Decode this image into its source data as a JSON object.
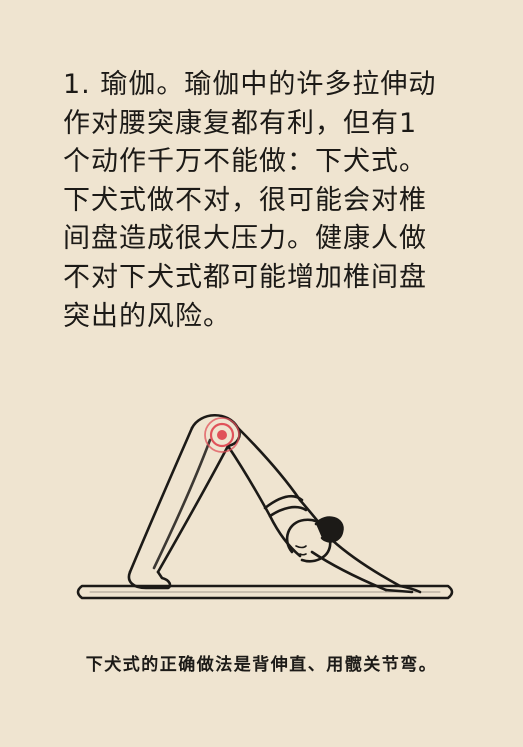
{
  "article": {
    "lines": [
      "1. 瑜伽。瑜伽中的许多拉伸动",
      "作对腰突康复都有利，但有1",
      "个动作千万不能做：下犬式。",
      "下犬式做不对，很可能会对椎",
      "间盘造成很大压力。健康人做",
      "不对下犬式都可能增加椎间盘",
      "突出的风险。"
    ],
    "caption": "下犬式的正确做法是背伸直、用髋关节弯。"
  },
  "colors": {
    "background": "#efe4d0",
    "ink": "#1c1a17",
    "highlight": "#e0525a"
  },
  "illustration": {
    "subject": "downward-dog-pose",
    "highlight_target": "hip-pain-marker"
  }
}
